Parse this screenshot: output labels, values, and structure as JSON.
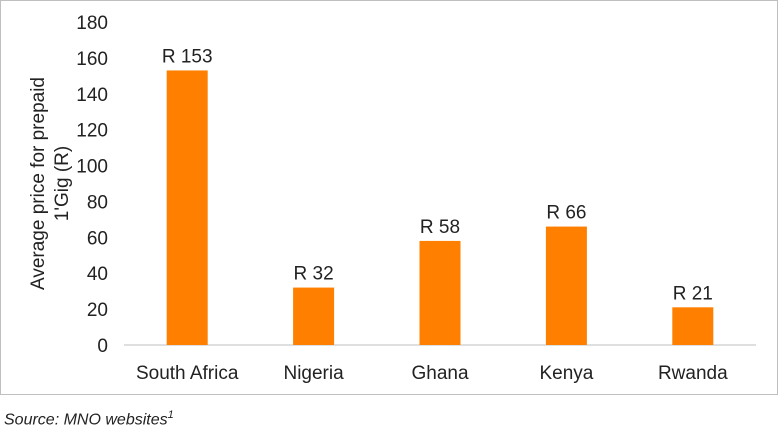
{
  "chart_data": {
    "type": "bar",
    "categories": [
      "South Africa",
      "Nigeria",
      "Ghana",
      "Kenya",
      "Rwanda"
    ],
    "values": [
      153,
      32,
      58,
      66,
      21
    ],
    "data_labels": [
      "R 153",
      "R 32",
      "R 58",
      "R 66",
      "R 21"
    ],
    "title": "",
    "xlabel": "",
    "ylabel_lines": [
      "Average price for prepaid",
      "1'Gig (R)"
    ],
    "ylim": [
      0,
      180
    ],
    "yticks": [
      0,
      20,
      40,
      60,
      80,
      100,
      120,
      140,
      160,
      180
    ],
    "grid": false,
    "legend": "none",
    "bar_color": "#ff7f00"
  },
  "footnote": {
    "text": "Source: MNO websites",
    "superscript": "1"
  }
}
